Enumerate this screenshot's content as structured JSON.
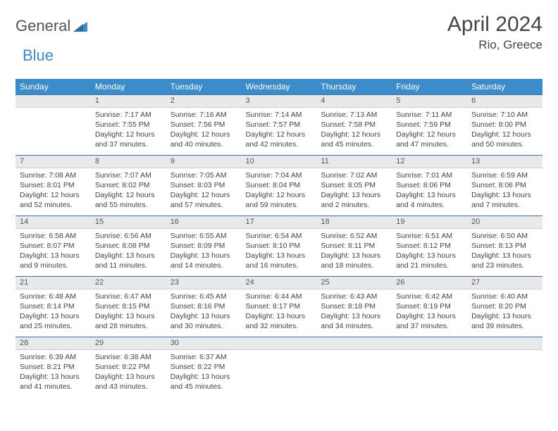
{
  "brand": {
    "word1": "General",
    "word2": "Blue"
  },
  "title": "April 2024",
  "location": "Rio, Greece",
  "colors": {
    "header_bg": "#3b8ccb",
    "header_text": "#ffffff",
    "daynum_bg": "#e9e9e9",
    "daynum_border_top": "#3b6fa5",
    "text": "#444444",
    "logo_gray": "#555555",
    "logo_blue": "#3b8ccb"
  },
  "days_of_week": [
    "Sunday",
    "Monday",
    "Tuesday",
    "Wednesday",
    "Thursday",
    "Friday",
    "Saturday"
  ],
  "weeks": [
    [
      null,
      {
        "n": "1",
        "sr": "7:17 AM",
        "ss": "7:55 PM",
        "dl": "12 hours and 37 minutes."
      },
      {
        "n": "2",
        "sr": "7:16 AM",
        "ss": "7:56 PM",
        "dl": "12 hours and 40 minutes."
      },
      {
        "n": "3",
        "sr": "7:14 AM",
        "ss": "7:57 PM",
        "dl": "12 hours and 42 minutes."
      },
      {
        "n": "4",
        "sr": "7:13 AM",
        "ss": "7:58 PM",
        "dl": "12 hours and 45 minutes."
      },
      {
        "n": "5",
        "sr": "7:11 AM",
        "ss": "7:59 PM",
        "dl": "12 hours and 47 minutes."
      },
      {
        "n": "6",
        "sr": "7:10 AM",
        "ss": "8:00 PM",
        "dl": "12 hours and 50 minutes."
      }
    ],
    [
      {
        "n": "7",
        "sr": "7:08 AM",
        "ss": "8:01 PM",
        "dl": "12 hours and 52 minutes."
      },
      {
        "n": "8",
        "sr": "7:07 AM",
        "ss": "8:02 PM",
        "dl": "12 hours and 55 minutes."
      },
      {
        "n": "9",
        "sr": "7:05 AM",
        "ss": "8:03 PM",
        "dl": "12 hours and 57 minutes."
      },
      {
        "n": "10",
        "sr": "7:04 AM",
        "ss": "8:04 PM",
        "dl": "12 hours and 59 minutes."
      },
      {
        "n": "11",
        "sr": "7:02 AM",
        "ss": "8:05 PM",
        "dl": "13 hours and 2 minutes."
      },
      {
        "n": "12",
        "sr": "7:01 AM",
        "ss": "8:06 PM",
        "dl": "13 hours and 4 minutes."
      },
      {
        "n": "13",
        "sr": "6:59 AM",
        "ss": "8:06 PM",
        "dl": "13 hours and 7 minutes."
      }
    ],
    [
      {
        "n": "14",
        "sr": "6:58 AM",
        "ss": "8:07 PM",
        "dl": "13 hours and 9 minutes."
      },
      {
        "n": "15",
        "sr": "6:56 AM",
        "ss": "8:08 PM",
        "dl": "13 hours and 11 minutes."
      },
      {
        "n": "16",
        "sr": "6:55 AM",
        "ss": "8:09 PM",
        "dl": "13 hours and 14 minutes."
      },
      {
        "n": "17",
        "sr": "6:54 AM",
        "ss": "8:10 PM",
        "dl": "13 hours and 16 minutes."
      },
      {
        "n": "18",
        "sr": "6:52 AM",
        "ss": "8:11 PM",
        "dl": "13 hours and 18 minutes."
      },
      {
        "n": "19",
        "sr": "6:51 AM",
        "ss": "8:12 PM",
        "dl": "13 hours and 21 minutes."
      },
      {
        "n": "20",
        "sr": "6:50 AM",
        "ss": "8:13 PM",
        "dl": "13 hours and 23 minutes."
      }
    ],
    [
      {
        "n": "21",
        "sr": "6:48 AM",
        "ss": "8:14 PM",
        "dl": "13 hours and 25 minutes."
      },
      {
        "n": "22",
        "sr": "6:47 AM",
        "ss": "8:15 PM",
        "dl": "13 hours and 28 minutes."
      },
      {
        "n": "23",
        "sr": "6:45 AM",
        "ss": "8:16 PM",
        "dl": "13 hours and 30 minutes."
      },
      {
        "n": "24",
        "sr": "6:44 AM",
        "ss": "8:17 PM",
        "dl": "13 hours and 32 minutes."
      },
      {
        "n": "25",
        "sr": "6:43 AM",
        "ss": "8:18 PM",
        "dl": "13 hours and 34 minutes."
      },
      {
        "n": "26",
        "sr": "6:42 AM",
        "ss": "8:19 PM",
        "dl": "13 hours and 37 minutes."
      },
      {
        "n": "27",
        "sr": "6:40 AM",
        "ss": "8:20 PM",
        "dl": "13 hours and 39 minutes."
      }
    ],
    [
      {
        "n": "28",
        "sr": "6:39 AM",
        "ss": "8:21 PM",
        "dl": "13 hours and 41 minutes."
      },
      {
        "n": "29",
        "sr": "6:38 AM",
        "ss": "8:22 PM",
        "dl": "13 hours and 43 minutes."
      },
      {
        "n": "30",
        "sr": "6:37 AM",
        "ss": "8:22 PM",
        "dl": "13 hours and 45 minutes."
      },
      null,
      null,
      null,
      null
    ]
  ],
  "labels": {
    "sunrise_prefix": "Sunrise: ",
    "sunset_prefix": "Sunset: ",
    "daylight_prefix": "Daylight: "
  }
}
